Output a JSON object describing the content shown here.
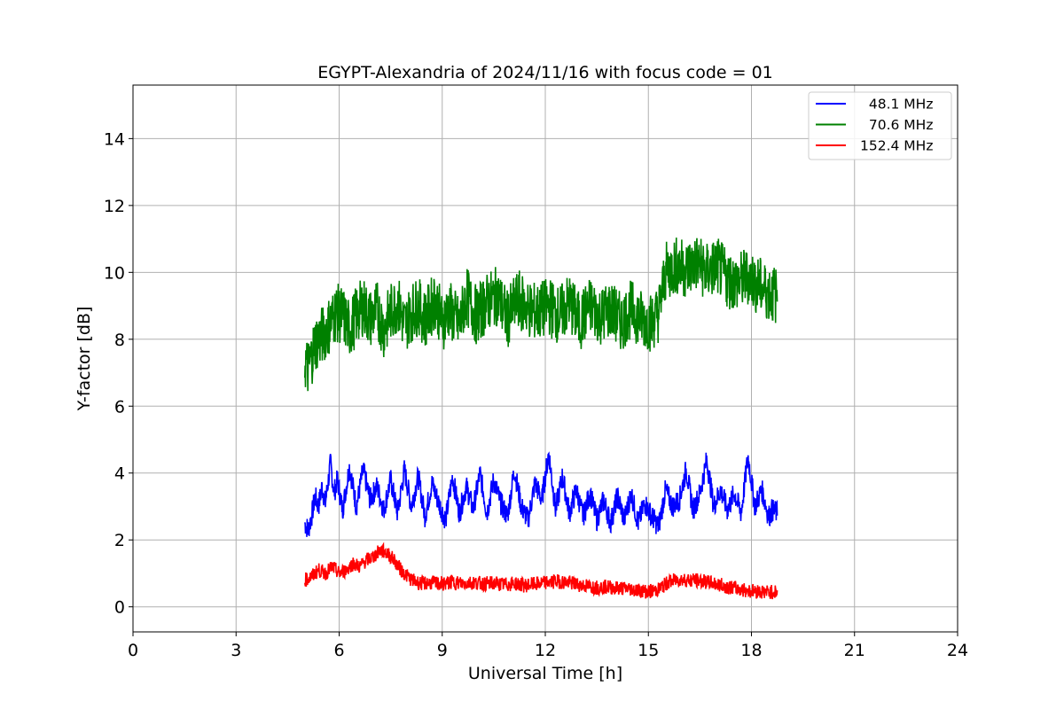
{
  "chart_data": {
    "type": "line",
    "title": "EGYPT-Alexandria of 2024/11/16 with focus code = 01",
    "xlabel": "Universal Time [h]",
    "ylabel": "Y-factor [dB]",
    "xlim": [
      0,
      24
    ],
    "ylim": [
      -0.75,
      15.6
    ],
    "xticks": [
      0,
      3,
      6,
      9,
      12,
      15,
      18,
      21,
      24
    ],
    "yticks": [
      0,
      2,
      4,
      6,
      8,
      10,
      12,
      14
    ],
    "grid": true,
    "legend_position": "top-right",
    "series": [
      {
        "name": "  48.1 MHz",
        "color": "#0000ff",
        "x": [
          5.0,
          5.1,
          5.2,
          5.3,
          5.4,
          5.5,
          5.6,
          5.75,
          5.85,
          5.95,
          6.1,
          6.3,
          6.5,
          6.7,
          6.9,
          7.1,
          7.3,
          7.5,
          7.7,
          7.9,
          8.1,
          8.3,
          8.5,
          8.7,
          8.9,
          9.1,
          9.3,
          9.5,
          9.7,
          9.9,
          10.1,
          10.3,
          10.5,
          10.7,
          10.9,
          11.1,
          11.3,
          11.5,
          11.7,
          11.9,
          12.1,
          12.3,
          12.5,
          12.7,
          12.9,
          13.1,
          13.3,
          13.5,
          13.7,
          13.9,
          14.1,
          14.3,
          14.5,
          14.7,
          14.9,
          15.1,
          15.3,
          15.5,
          15.7,
          15.9,
          16.1,
          16.3,
          16.5,
          16.7,
          16.9,
          17.1,
          17.3,
          17.5,
          17.7,
          17.9,
          18.1,
          18.3,
          18.5,
          18.6,
          18.75
        ],
        "y": [
          2.5,
          2.3,
          2.7,
          3.3,
          3.0,
          3.6,
          3.1,
          4.3,
          3.4,
          3.8,
          2.9,
          4.2,
          3.0,
          4.1,
          3.2,
          3.6,
          2.9,
          3.8,
          2.8,
          4.1,
          3.0,
          3.9,
          2.7,
          3.7,
          3.1,
          2.6,
          3.9,
          2.8,
          3.6,
          2.9,
          4.0,
          2.8,
          3.8,
          3.1,
          2.7,
          4.1,
          3.0,
          2.6,
          3.7,
          3.2,
          4.6,
          2.9,
          3.9,
          2.8,
          3.5,
          2.7,
          3.4,
          2.6,
          3.2,
          2.5,
          3.3,
          2.6,
          3.4,
          2.5,
          3.1,
          2.7,
          2.4,
          3.5,
          3.0,
          3.2,
          4.1,
          2.9,
          3.4,
          4.4,
          3.0,
          3.5,
          2.9,
          3.4,
          2.8,
          4.5,
          3.0,
          3.5,
          2.7,
          2.9,
          2.8
        ]
      },
      {
        "name": "  70.6 MHz",
        "color": "#008000",
        "x": [
          5.0,
          5.1,
          5.2,
          5.3,
          5.5,
          5.7,
          5.9,
          6.1,
          6.3,
          6.5,
          6.7,
          6.9,
          7.1,
          7.3,
          7.5,
          7.7,
          7.9,
          8.1,
          8.3,
          8.5,
          8.8,
          9.0,
          9.2,
          9.5,
          9.7,
          10.0,
          10.3,
          10.6,
          10.9,
          11.2,
          11.5,
          11.8,
          12.1,
          12.4,
          12.7,
          13.0,
          13.3,
          13.6,
          13.9,
          14.2,
          14.5,
          14.8,
          15.1,
          15.3,
          15.5,
          15.8,
          16.1,
          16.4,
          16.7,
          17.0,
          17.3,
          17.6,
          17.9,
          18.2,
          18.5,
          18.75
        ],
        "y": [
          7.4,
          7.1,
          7.5,
          7.9,
          8.1,
          8.4,
          8.8,
          8.7,
          8.3,
          8.7,
          9.0,
          8.6,
          8.9,
          8.3,
          8.8,
          9.1,
          8.4,
          8.8,
          9.0,
          8.6,
          9.2,
          8.5,
          8.9,
          8.4,
          9.3,
          8.7,
          9.1,
          9.3,
          8.6,
          9.2,
          8.9,
          8.8,
          9.0,
          8.7,
          9.1,
          8.5,
          9.0,
          8.7,
          8.9,
          8.5,
          8.9,
          8.6,
          8.5,
          8.8,
          10.0,
          10.2,
          10.1,
          10.3,
          10.0,
          10.2,
          9.8,
          9.7,
          9.9,
          9.6,
          9.4,
          9.3
        ]
      },
      {
        "name": "152.4 MHz",
        "color": "#ff0000",
        "x": [
          5.0,
          5.2,
          5.4,
          5.6,
          5.8,
          6.0,
          6.2,
          6.4,
          6.6,
          6.8,
          7.0,
          7.2,
          7.4,
          7.6,
          7.8,
          8.0,
          8.2,
          8.4,
          8.7,
          9.0,
          9.3,
          9.6,
          9.9,
          10.2,
          10.5,
          10.8,
          11.1,
          11.4,
          11.7,
          12.0,
          12.3,
          12.6,
          12.9,
          13.2,
          13.5,
          13.8,
          14.1,
          14.4,
          14.7,
          15.0,
          15.3,
          15.6,
          15.9,
          16.2,
          16.5,
          16.8,
          17.1,
          17.4,
          17.7,
          18.0,
          18.3,
          18.5,
          18.75
        ],
        "y": [
          0.8,
          0.9,
          1.1,
          1.0,
          1.2,
          1.0,
          1.1,
          1.3,
          1.2,
          1.4,
          1.5,
          1.7,
          1.6,
          1.4,
          1.1,
          0.9,
          0.75,
          0.7,
          0.72,
          0.68,
          0.74,
          0.7,
          0.73,
          0.69,
          0.71,
          0.66,
          0.7,
          0.64,
          0.68,
          0.72,
          0.76,
          0.74,
          0.68,
          0.62,
          0.58,
          0.6,
          0.56,
          0.55,
          0.5,
          0.45,
          0.52,
          0.75,
          0.82,
          0.8,
          0.78,
          0.72,
          0.65,
          0.58,
          0.52,
          0.48,
          0.45,
          0.44,
          0.45
        ]
      }
    ]
  }
}
